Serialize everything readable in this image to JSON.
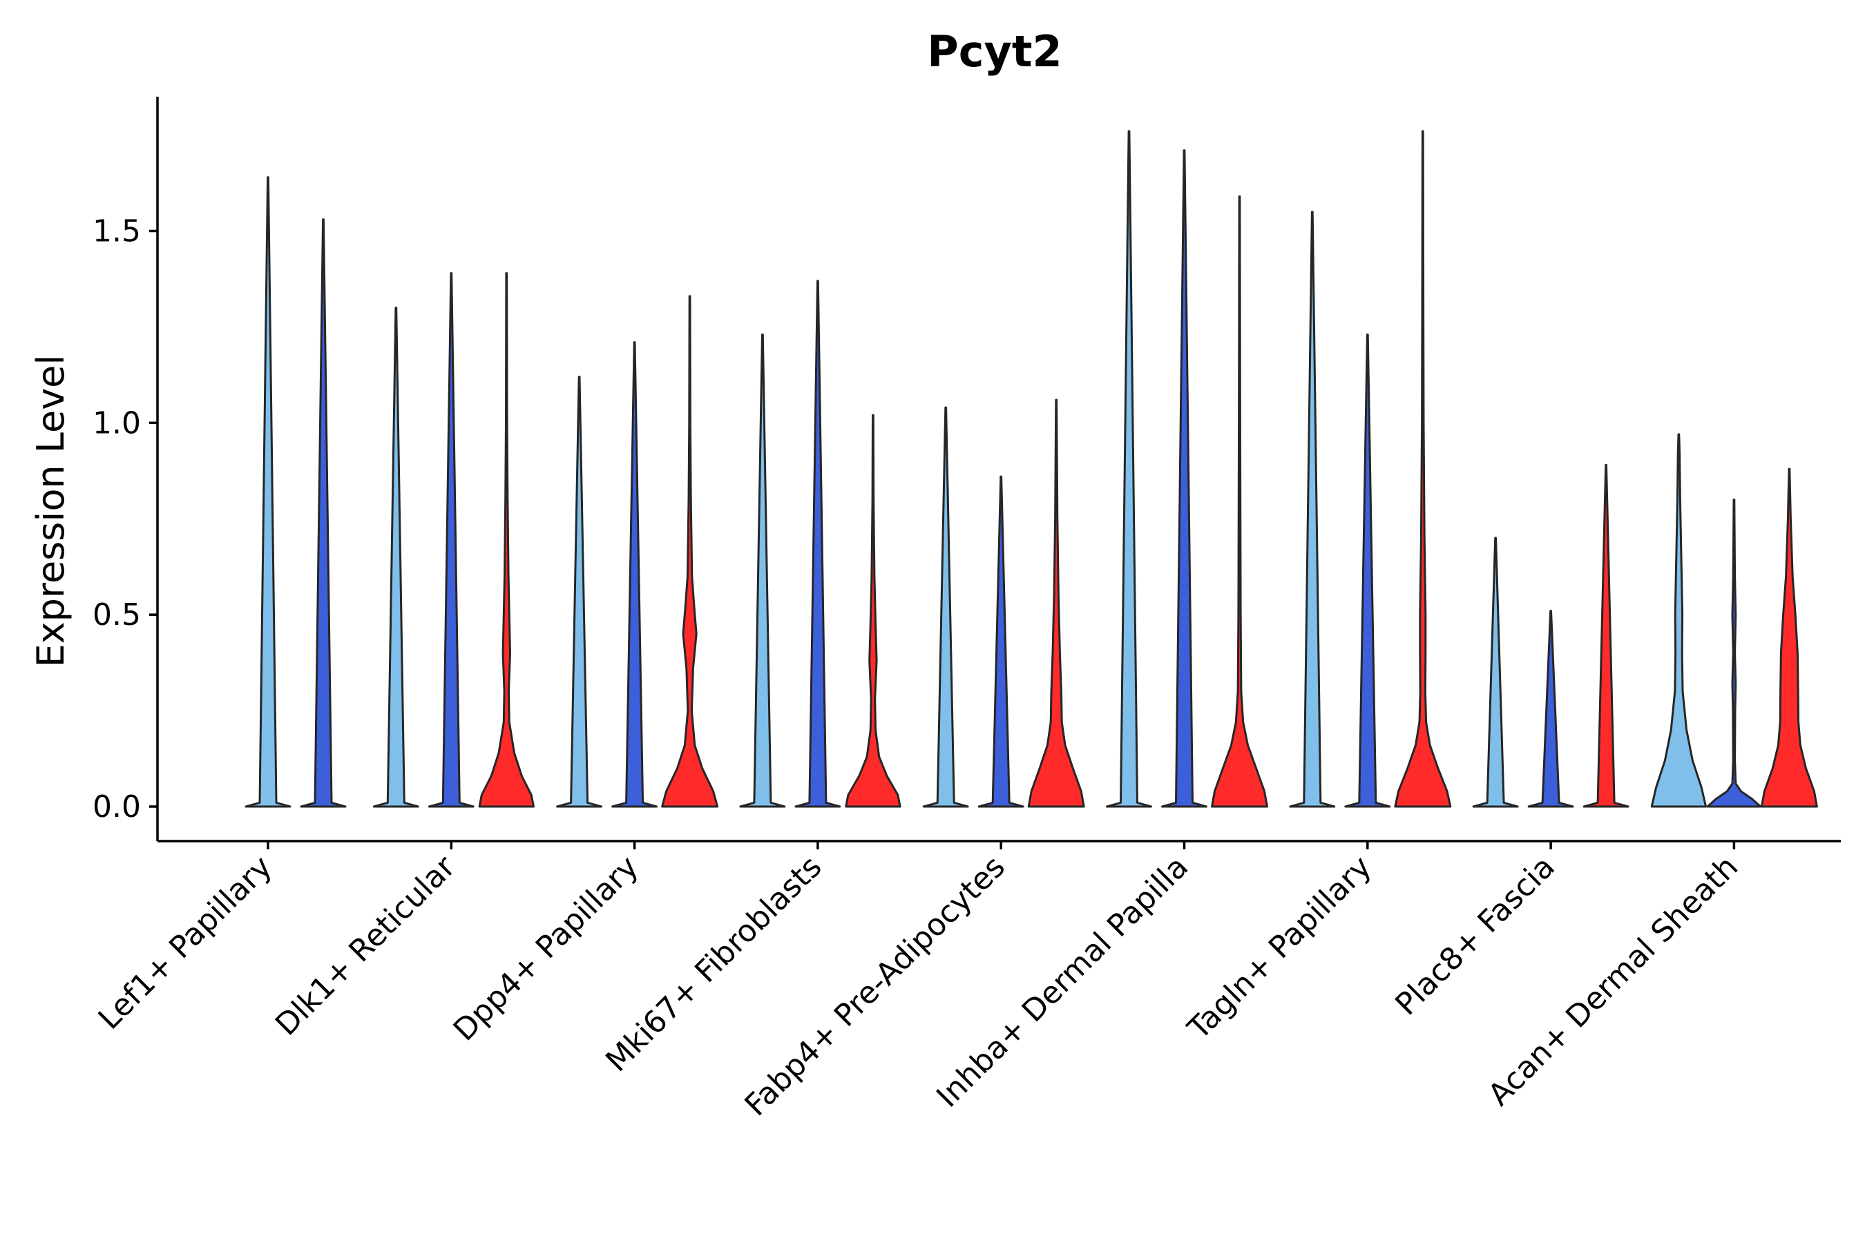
{
  "chart_data": {
    "type": "violin",
    "title": "Pcyt2",
    "xlabel": "",
    "ylabel": "Expression Level",
    "ylim": [
      -0.09,
      1.85
    ],
    "yticks": [
      0.0,
      0.5,
      1.0,
      1.5
    ],
    "ytick_labels": [
      "0.0",
      "0.5",
      "1.0",
      "1.5"
    ],
    "categories": [
      "Lef1+ Papillary",
      "Dlk1+ Reticular",
      "Dpp4+ Papillary",
      "Mki67+ Fibroblasts",
      "Fabp4+ Pre-Adipocytes",
      "Inhba+ Dermal Papilla",
      "Tagln+ Papillary",
      "Plac8+ Fascia",
      "Acan+ Dermal Sheath"
    ],
    "colors": {
      "light_blue": "#7fbfea",
      "blue": "#3d5fd9",
      "red": "#ff2b2b",
      "outline": "#262626"
    },
    "series": [
      {
        "category": "Lef1+ Papillary",
        "group": 1,
        "color": "#7fbfea",
        "max": 1.64,
        "profile": [
          [
            0,
            0.8
          ],
          [
            0.01,
            0.3
          ],
          [
            1.64,
            0.01
          ]
        ]
      },
      {
        "category": "Lef1+ Papillary",
        "group": 2,
        "color": "#3d5fd9",
        "max": 1.53,
        "profile": [
          [
            0,
            0.8
          ],
          [
            0.01,
            0.3
          ],
          [
            1.53,
            0.01
          ]
        ]
      },
      {
        "category": "Dlk1+ Reticular",
        "group": 0,
        "color": "#7fbfea",
        "max": 1.3,
        "profile": [
          [
            0,
            0.8
          ],
          [
            0.01,
            0.3
          ],
          [
            1.3,
            0.01
          ]
        ]
      },
      {
        "category": "Dlk1+ Reticular",
        "group": 1,
        "color": "#3d5fd9",
        "max": 1.39,
        "profile": [
          [
            0,
            0.8
          ],
          [
            0.01,
            0.3
          ],
          [
            1.39,
            0.01
          ]
        ]
      },
      {
        "category": "Dlk1+ Reticular",
        "group": 2,
        "color": "#ff2b2b",
        "max": 1.39,
        "profile": [
          [
            0,
            0.98
          ],
          [
            0.03,
            0.9
          ],
          [
            0.08,
            0.55
          ],
          [
            0.14,
            0.28
          ],
          [
            0.22,
            0.1
          ],
          [
            0.3,
            0.08
          ],
          [
            0.4,
            0.13
          ],
          [
            0.5,
            0.1
          ],
          [
            0.6,
            0.07
          ],
          [
            0.8,
            0.04
          ],
          [
            1.0,
            0.02
          ],
          [
            1.39,
            0.01
          ]
        ]
      },
      {
        "category": "Dpp4+ Papillary",
        "group": 0,
        "color": "#7fbfea",
        "max": 1.12,
        "profile": [
          [
            0,
            0.8
          ],
          [
            0.01,
            0.3
          ],
          [
            1.12,
            0.01
          ]
        ]
      },
      {
        "category": "Dpp4+ Papillary",
        "group": 1,
        "color": "#3d5fd9",
        "max": 1.21,
        "profile": [
          [
            0,
            0.8
          ],
          [
            0.01,
            0.3
          ],
          [
            1.21,
            0.01
          ]
        ]
      },
      {
        "category": "Dpp4+ Papillary",
        "group": 2,
        "color": "#ff2b2b",
        "max": 1.33,
        "profile": [
          [
            0,
            1.0
          ],
          [
            0.04,
            0.85
          ],
          [
            0.1,
            0.45
          ],
          [
            0.16,
            0.18
          ],
          [
            0.25,
            0.07
          ],
          [
            0.36,
            0.12
          ],
          [
            0.45,
            0.24
          ],
          [
            0.52,
            0.16
          ],
          [
            0.6,
            0.08
          ],
          [
            0.8,
            0.04
          ],
          [
            1.0,
            0.02
          ],
          [
            1.33,
            0.01
          ]
        ]
      },
      {
        "category": "Mki67+ Fibroblasts",
        "group": 0,
        "color": "#7fbfea",
        "max": 1.23,
        "profile": [
          [
            0,
            0.8
          ],
          [
            0.01,
            0.3
          ],
          [
            1.23,
            0.01
          ]
        ]
      },
      {
        "category": "Mki67+ Fibroblasts",
        "group": 1,
        "color": "#3d5fd9",
        "max": 1.37,
        "profile": [
          [
            0,
            0.8
          ],
          [
            0.01,
            0.3
          ],
          [
            1.37,
            0.01
          ]
        ]
      },
      {
        "category": "Mki67+ Fibroblasts",
        "group": 2,
        "color": "#ff2b2b",
        "max": 1.02,
        "profile": [
          [
            0,
            0.98
          ],
          [
            0.03,
            0.9
          ],
          [
            0.08,
            0.5
          ],
          [
            0.13,
            0.22
          ],
          [
            0.2,
            0.09
          ],
          [
            0.28,
            0.07
          ],
          [
            0.38,
            0.13
          ],
          [
            0.48,
            0.09
          ],
          [
            0.6,
            0.05
          ],
          [
            0.8,
            0.02
          ],
          [
            1.02,
            0.01
          ]
        ]
      },
      {
        "category": "Fabp4+ Pre-Adipocytes",
        "group": 0,
        "color": "#7fbfea",
        "max": 1.04,
        "profile": [
          [
            0,
            0.8
          ],
          [
            0.01,
            0.3
          ],
          [
            1.04,
            0.01
          ]
        ]
      },
      {
        "category": "Fabp4+ Pre-Adipocytes",
        "group": 1,
        "color": "#3d5fd9",
        "max": 0.86,
        "profile": [
          [
            0,
            0.8
          ],
          [
            0.01,
            0.3
          ],
          [
            0.86,
            0.01
          ]
        ]
      },
      {
        "category": "Fabp4+ Pre-Adipocytes",
        "group": 2,
        "color": "#ff2b2b",
        "max": 1.06,
        "profile": [
          [
            0,
            1.0
          ],
          [
            0.04,
            0.9
          ],
          [
            0.1,
            0.6
          ],
          [
            0.16,
            0.32
          ],
          [
            0.22,
            0.2
          ],
          [
            0.3,
            0.18
          ],
          [
            0.4,
            0.13
          ],
          [
            0.55,
            0.08
          ],
          [
            0.75,
            0.04
          ],
          [
            1.06,
            0.01
          ]
        ]
      },
      {
        "category": "Inhba+ Dermal Papilla",
        "group": 0,
        "color": "#7fbfea",
        "max": 1.76,
        "profile": [
          [
            0,
            0.8
          ],
          [
            0.01,
            0.3
          ],
          [
            1.76,
            0.01
          ]
        ]
      },
      {
        "category": "Inhba+ Dermal Papilla",
        "group": 1,
        "color": "#3d5fd9",
        "max": 1.71,
        "profile": [
          [
            0,
            0.8
          ],
          [
            0.01,
            0.3
          ],
          [
            1.71,
            0.01
          ]
        ]
      },
      {
        "category": "Inhba+ Dermal Papilla",
        "group": 2,
        "color": "#ff2b2b",
        "max": 1.59,
        "profile": [
          [
            0,
            1.0
          ],
          [
            0.04,
            0.9
          ],
          [
            0.1,
            0.6
          ],
          [
            0.16,
            0.3
          ],
          [
            0.22,
            0.13
          ],
          [
            0.3,
            0.06
          ],
          [
            0.5,
            0.04
          ],
          [
            0.8,
            0.03
          ],
          [
            1.1,
            0.02
          ],
          [
            1.59,
            0.01
          ]
        ]
      },
      {
        "category": "Tagln+ Papillary",
        "group": 0,
        "color": "#7fbfea",
        "max": 1.55,
        "profile": [
          [
            0,
            0.8
          ],
          [
            0.01,
            0.3
          ],
          [
            1.55,
            0.01
          ]
        ]
      },
      {
        "category": "Tagln+ Papillary",
        "group": 1,
        "color": "#3d5fd9",
        "max": 1.23,
        "profile": [
          [
            0,
            0.8
          ],
          [
            0.01,
            0.3
          ],
          [
            1.23,
            0.01
          ]
        ]
      },
      {
        "category": "Tagln+ Papillary",
        "group": 2,
        "color": "#ff2b2b",
        "max": 1.76,
        "profile": [
          [
            0,
            1.0
          ],
          [
            0.04,
            0.88
          ],
          [
            0.1,
            0.55
          ],
          [
            0.16,
            0.26
          ],
          [
            0.22,
            0.12
          ],
          [
            0.3,
            0.09
          ],
          [
            0.4,
            0.1
          ],
          [
            0.5,
            0.1
          ],
          [
            0.7,
            0.06
          ],
          [
            1.0,
            0.03
          ],
          [
            1.3,
            0.02
          ],
          [
            1.76,
            0.01
          ]
        ]
      },
      {
        "category": "Plac8+ Fascia",
        "group": 0,
        "color": "#7fbfea",
        "max": 0.7,
        "profile": [
          [
            0,
            0.8
          ],
          [
            0.01,
            0.3
          ],
          [
            0.7,
            0.01
          ]
        ]
      },
      {
        "category": "Plac8+ Fascia",
        "group": 1,
        "color": "#3d5fd9",
        "max": 0.51,
        "profile": [
          [
            0,
            0.8
          ],
          [
            0.01,
            0.3
          ],
          [
            0.51,
            0.01
          ]
        ]
      },
      {
        "category": "Plac8+ Fascia",
        "group": 2,
        "color": "#ff2b2b",
        "max": 0.89,
        "profile": [
          [
            0,
            0.8
          ],
          [
            0.01,
            0.3
          ],
          [
            0.89,
            0.01
          ]
        ]
      },
      {
        "category": "Acan+ Dermal Sheath",
        "group": 0,
        "color": "#7fbfea",
        "max": 0.97,
        "profile": [
          [
            0,
            0.98
          ],
          [
            0.05,
            0.82
          ],
          [
            0.12,
            0.5
          ],
          [
            0.2,
            0.28
          ],
          [
            0.3,
            0.14
          ],
          [
            0.4,
            0.12
          ],
          [
            0.5,
            0.13
          ],
          [
            0.65,
            0.09
          ],
          [
            0.8,
            0.05
          ],
          [
            0.92,
            0.03
          ],
          [
            0.97,
            0.01
          ]
        ]
      },
      {
        "category": "Acan+ Dermal Sheath",
        "group": 1,
        "color": "#3d5fd9",
        "max": 0.8,
        "profile": [
          [
            0,
            0.96
          ],
          [
            0.02,
            0.65
          ],
          [
            0.04,
            0.25
          ],
          [
            0.06,
            0.06
          ],
          [
            0.12,
            0.03
          ],
          [
            0.25,
            0.04
          ],
          [
            0.32,
            0.06
          ],
          [
            0.4,
            0.03
          ],
          [
            0.5,
            0.06
          ],
          [
            0.6,
            0.03
          ],
          [
            0.7,
            0.02
          ],
          [
            0.8,
            0.01
          ]
        ]
      },
      {
        "category": "Acan+ Dermal Sheath",
        "group": 2,
        "color": "#ff2b2b",
        "max": 0.88,
        "profile": [
          [
            0,
            1.0
          ],
          [
            0.04,
            0.9
          ],
          [
            0.1,
            0.6
          ],
          [
            0.16,
            0.4
          ],
          [
            0.22,
            0.33
          ],
          [
            0.3,
            0.32
          ],
          [
            0.4,
            0.3
          ],
          [
            0.5,
            0.22
          ],
          [
            0.6,
            0.12
          ],
          [
            0.75,
            0.05
          ],
          [
            0.88,
            0.01
          ]
        ]
      }
    ]
  }
}
